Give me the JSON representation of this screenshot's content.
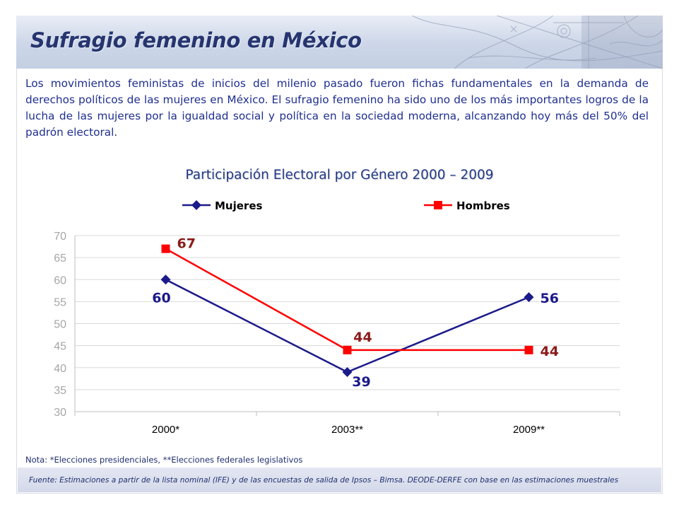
{
  "header": {
    "title": "Sufragio femenino en México"
  },
  "intro_text": "Los movimientos feministas de inicios del milenio pasado fueron fichas fundamentales en la demanda de derechos políticos de las mujeres en México. El sufragio femenino ha sido uno de los más importantes logros de la lucha de las mujeres por la igualdad social y política en la sociedad moderna, alcanzando hoy más del 50% del padrón electoral.",
  "chart_data": {
    "type": "line",
    "title": "Participación Electoral por Género 2000 – 2009",
    "categories": [
      "2000*",
      "2003**",
      "2009**"
    ],
    "series": [
      {
        "name": "Mujeres",
        "values": [
          60,
          39,
          56
        ],
        "color": "#1b1a8a",
        "marker": "diamond"
      },
      {
        "name": "Hombres",
        "values": [
          67,
          44,
          44
        ],
        "color": "#ff0000",
        "marker": "square"
      }
    ],
    "ylim": [
      30,
      70
    ],
    "yticks": [
      30,
      35,
      40,
      45,
      50,
      55,
      60,
      65,
      70
    ],
    "grid": true,
    "legend": "top",
    "label_colors": {
      "Mujeres": "#1b1a8a",
      "Hombres": "#8b1a1a"
    }
  },
  "footer": {
    "note": "Nota: *Elecciones presidenciales, **Elecciones federales legislativos",
    "source": "Fuente: Estimaciones a partir de la lista nominal (IFE) y de las encuestas de salida de Ipsos – Bimsa. DEODE-DERFE con base en las estimaciones muestrales"
  }
}
